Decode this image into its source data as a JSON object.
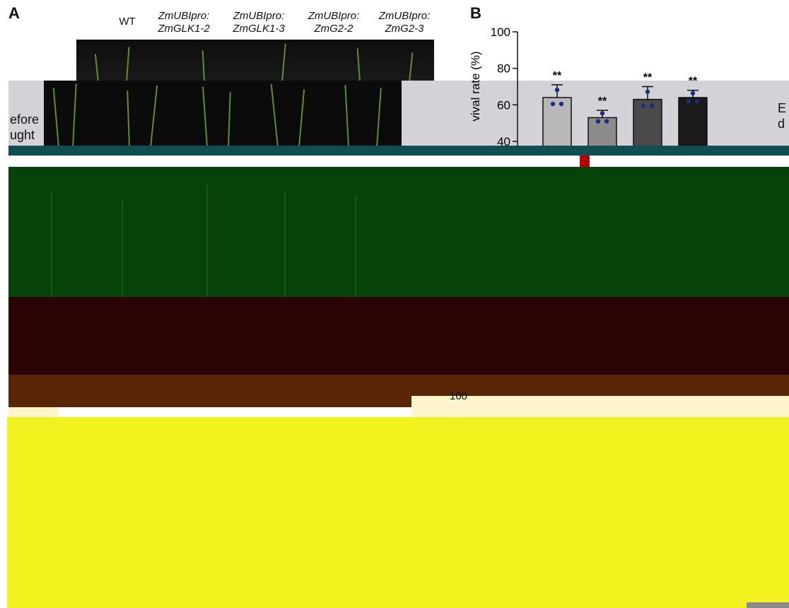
{
  "panel_a": {
    "letter": "A",
    "columns": [
      {
        "line1": "WT",
        "line2": ""
      },
      {
        "line1": "ZmUBIpro:",
        "line2": "ZmGLK1-2"
      },
      {
        "line1": "ZmUBIpro:",
        "line2": "ZmGLK1-3"
      },
      {
        "line1": "ZmUBIpro:",
        "line2": "ZmG2-2"
      },
      {
        "line1": "ZmUBIpro:",
        "line2": "ZmG2-3"
      }
    ],
    "row_label_line1": "efore",
    "row_label_line2": "ught",
    "right_label": "E",
    "right_label2": "d"
  },
  "panel_b": {
    "letter": "B"
  },
  "chart_data": {
    "type": "bar",
    "ylabel": "vival rate (%)",
    "ylabel_fragment_top": "%)",
    "y_ticks": [
      40,
      60,
      80,
      100
    ],
    "ylim": [
      40,
      100
    ],
    "values": [
      64,
      53,
      63,
      64
    ],
    "errors": [
      7,
      4,
      7,
      4
    ],
    "significance": [
      "**",
      "**",
      "**",
      "**"
    ],
    "bar_colors": [
      "#b8b8b8",
      "#8c8c8c",
      "#4a4a4a",
      "#1a1a1a"
    ],
    "point_color": "#1b2f7a",
    "lower_axis_tick": "100"
  },
  "colors": {
    "grey_strip": "#d2d2d8",
    "teal_strip": "#0f4f4f",
    "dark_green": "#06420a",
    "maroon": "#2a0505",
    "brown": "#5a2608",
    "cream": "#fff4cc",
    "yellow": "#f2f21f",
    "corner_grey": "#8a8a8a"
  }
}
